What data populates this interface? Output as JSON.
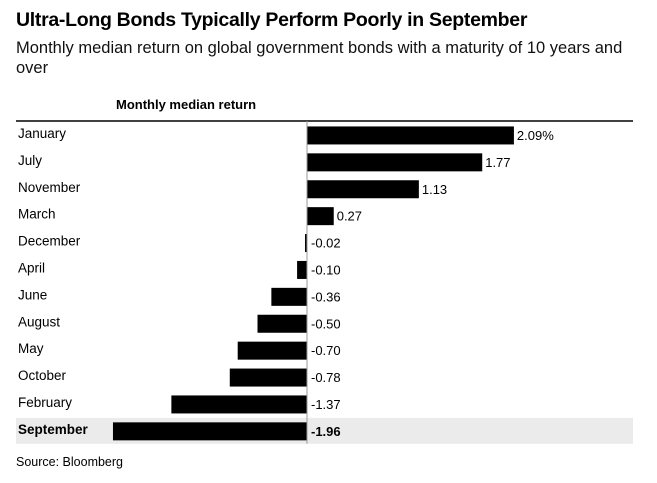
{
  "chart_data": {
    "type": "bar",
    "orientation": "horizontal",
    "title": "Ultra-Long Bonds Typically Perform Poorly in September",
    "subtitle": "Monthly median return on global government bonds with a maturity of 10 years and over",
    "column_header": "Monthly median return",
    "categories": [
      "January",
      "July",
      "November",
      "March",
      "December",
      "April",
      "June",
      "August",
      "May",
      "October",
      "February",
      "September"
    ],
    "values": [
      2.09,
      1.77,
      1.13,
      0.27,
      -0.02,
      -0.1,
      -0.36,
      -0.5,
      -0.7,
      -0.78,
      -1.37,
      -1.96
    ],
    "value_labels": [
      "2.09%",
      "1.77",
      "1.13",
      "0.27",
      "-0.02",
      "-0.10",
      "-0.36",
      "-0.50",
      "-0.70",
      "-0.78",
      "-1.37",
      "-1.96"
    ],
    "highlight": "September",
    "xlim": [
      -2.0,
      2.15
    ],
    "bar_color": "#000000",
    "highlight_row_color": "#ebebeb",
    "grid": false,
    "source": "Source: Bloomberg"
  }
}
